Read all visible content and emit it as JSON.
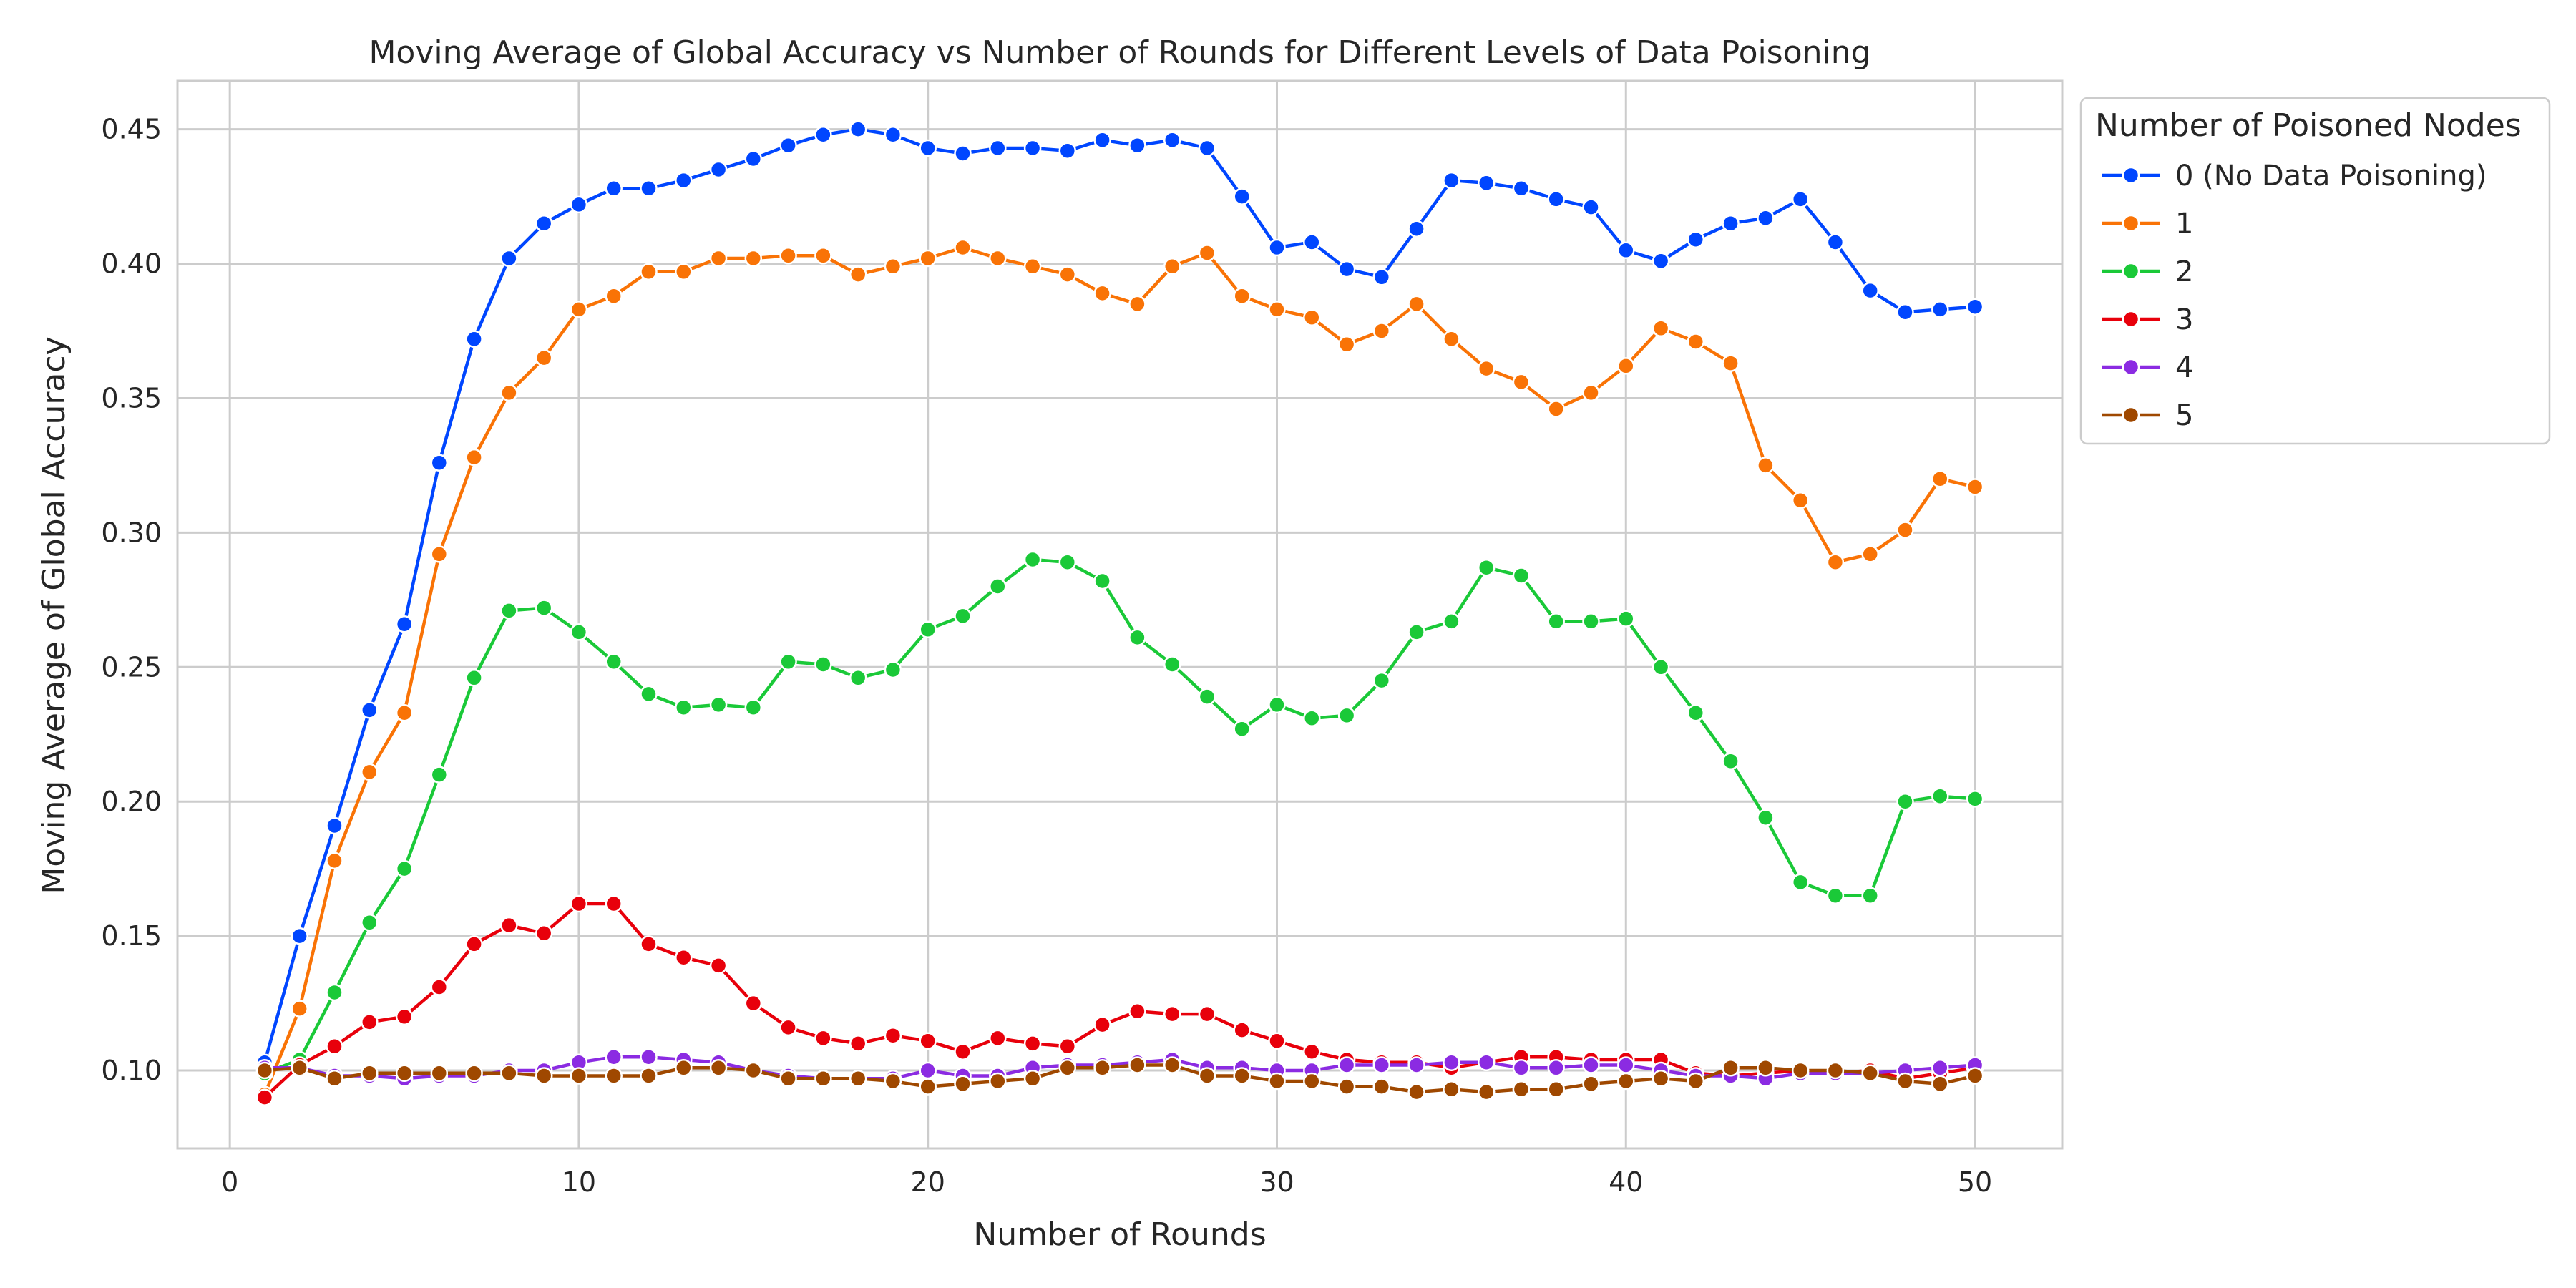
{
  "chart_data": {
    "type": "line",
    "title": "Moving Average of Global Accuracy vs Number of Rounds for Different Levels of Data Poisoning",
    "xlabel": "Number of Rounds",
    "ylabel": "Moving Average of Global Accuracy",
    "xlim": [
      -1.5,
      52.5
    ],
    "ylim": [
      0.071,
      0.468
    ],
    "xticks": [
      0,
      10,
      20,
      30,
      40,
      50
    ],
    "yticks": [
      0.1,
      0.15,
      0.2,
      0.25,
      0.3,
      0.35,
      0.4,
      0.45
    ],
    "yticklabels": [
      "0.10",
      "0.15",
      "0.20",
      "0.25",
      "0.30",
      "0.35",
      "0.40",
      "0.45"
    ],
    "grid": true,
    "legend": {
      "title": "Number of Poisoned Nodes",
      "placement": "outside-right"
    },
    "x": [
      1,
      2,
      3,
      4,
      5,
      6,
      7,
      8,
      9,
      10,
      11,
      12,
      13,
      14,
      15,
      16,
      17,
      18,
      19,
      20,
      21,
      22,
      23,
      24,
      25,
      26,
      27,
      28,
      29,
      30,
      31,
      32,
      33,
      34,
      35,
      36,
      37,
      38,
      39,
      40,
      41,
      42,
      43,
      44,
      45,
      46,
      47,
      48,
      49,
      50
    ],
    "series": [
      {
        "name": "0 (No Data Poisoning)",
        "color": "#0046ff",
        "values": [
          0.103,
          0.15,
          0.191,
          0.234,
          0.266,
          0.326,
          0.372,
          0.402,
          0.415,
          0.422,
          0.428,
          0.428,
          0.431,
          0.435,
          0.439,
          0.444,
          0.448,
          0.45,
          0.448,
          0.443,
          0.441,
          0.443,
          0.443,
          0.442,
          0.446,
          0.444,
          0.446,
          0.443,
          0.425,
          0.406,
          0.408,
          0.398,
          0.395,
          0.413,
          0.431,
          0.43,
          0.428,
          0.424,
          0.421,
          0.405,
          0.401,
          0.409,
          0.415,
          0.417,
          0.424,
          0.408,
          0.39,
          0.382,
          0.383,
          0.384
        ]
      },
      {
        "name": "1",
        "color": "#f97306",
        "values": [
          0.091,
          0.123,
          0.178,
          0.211,
          0.233,
          0.292,
          0.328,
          0.352,
          0.365,
          0.383,
          0.388,
          0.397,
          0.397,
          0.402,
          0.402,
          0.403,
          0.403,
          0.396,
          0.399,
          0.402,
          0.406,
          0.402,
          0.399,
          0.396,
          0.389,
          0.385,
          0.399,
          0.404,
          0.388,
          0.383,
          0.38,
          0.37,
          0.375,
          0.385,
          0.372,
          0.361,
          0.356,
          0.346,
          0.352,
          0.362,
          0.376,
          0.371,
          0.363,
          0.325,
          0.312,
          0.289,
          0.292,
          0.301,
          0.32,
          0.317
        ]
      },
      {
        "name": "2",
        "color": "#1ac938",
        "values": [
          0.099,
          0.104,
          0.129,
          0.155,
          0.175,
          0.21,
          0.246,
          0.271,
          0.272,
          0.263,
          0.252,
          0.24,
          0.235,
          0.236,
          0.235,
          0.252,
          0.251,
          0.246,
          0.249,
          0.264,
          0.269,
          0.28,
          0.29,
          0.289,
          0.282,
          0.261,
          0.251,
          0.239,
          0.227,
          0.236,
          0.231,
          0.232,
          0.245,
          0.263,
          0.267,
          0.287,
          0.284,
          0.267,
          0.267,
          0.268,
          0.25,
          0.233,
          0.215,
          0.194,
          0.17,
          0.165,
          0.165,
          0.2,
          0.202,
          0.201
        ]
      },
      {
        "name": "3",
        "color": "#e8000b",
        "values": [
          0.09,
          0.102,
          0.109,
          0.118,
          0.12,
          0.131,
          0.147,
          0.154,
          0.151,
          0.162,
          0.162,
          0.147,
          0.142,
          0.139,
          0.125,
          0.116,
          0.112,
          0.11,
          0.113,
          0.111,
          0.107,
          0.112,
          0.11,
          0.109,
          0.117,
          0.122,
          0.121,
          0.121,
          0.115,
          0.111,
          0.107,
          0.104,
          0.103,
          0.103,
          0.101,
          0.103,
          0.105,
          0.105,
          0.104,
          0.104,
          0.104,
          0.099,
          0.098,
          0.099,
          0.1,
          0.099,
          0.1,
          0.097,
          0.099,
          0.101
        ]
      },
      {
        "name": "4",
        "color": "#8b2be2",
        "values": [
          0.101,
          0.101,
          0.098,
          0.098,
          0.097,
          0.098,
          0.098,
          0.1,
          0.1,
          0.103,
          0.105,
          0.105,
          0.104,
          0.103,
          0.1,
          0.098,
          0.097,
          0.097,
          0.097,
          0.1,
          0.098,
          0.098,
          0.101,
          0.102,
          0.102,
          0.103,
          0.104,
          0.101,
          0.101,
          0.1,
          0.1,
          0.102,
          0.102,
          0.102,
          0.103,
          0.103,
          0.101,
          0.101,
          0.102,
          0.102,
          0.1,
          0.098,
          0.098,
          0.097,
          0.099,
          0.099,
          0.099,
          0.1,
          0.101,
          0.102
        ]
      },
      {
        "name": "5",
        "color": "#9f4800",
        "values": [
          0.1,
          0.101,
          0.097,
          0.099,
          0.099,
          0.099,
          0.099,
          0.099,
          0.098,
          0.098,
          0.098,
          0.098,
          0.101,
          0.101,
          0.1,
          0.097,
          0.097,
          0.097,
          0.096,
          0.094,
          0.095,
          0.096,
          0.097,
          0.101,
          0.101,
          0.102,
          0.102,
          0.098,
          0.098,
          0.096,
          0.096,
          0.094,
          0.094,
          0.092,
          0.093,
          0.092,
          0.093,
          0.093,
          0.095,
          0.096,
          0.097,
          0.096,
          0.101,
          0.101,
          0.1,
          0.1,
          0.099,
          0.096,
          0.095,
          0.098
        ]
      }
    ]
  }
}
